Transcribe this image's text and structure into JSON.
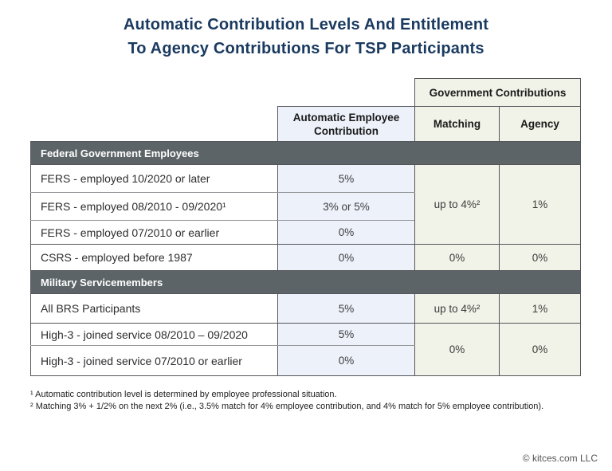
{
  "title": {
    "line1": "Automatic Contribution Levels And Entitlement",
    "line2": "To Agency Contributions For TSP Participants"
  },
  "table": {
    "government_header": "Government Contributions",
    "columns": {
      "employee": "Automatic Employee Contribution",
      "matching": "Matching",
      "agency": "Agency"
    },
    "federal": {
      "section_label": "Federal Government Employees",
      "rows": [
        {
          "label": "FERS - employed 10/2020 or later",
          "employee": "5%"
        },
        {
          "label": "FERS - employed 08/2010 - 09/2020¹",
          "employee": "3% or 5%"
        },
        {
          "label": "FERS - employed 07/2010 or earlier",
          "employee": "0%"
        },
        {
          "label": "CSRS - employed before 1987",
          "employee": "0%",
          "matching": "0%",
          "agency": "0%"
        }
      ],
      "merged": {
        "matching": "up to 4%²",
        "agency": "1%"
      }
    },
    "military": {
      "section_label": "Military Servicemembers",
      "rows": [
        {
          "label": "All BRS Participants",
          "employee": "5%",
          "matching": "up to 4%²",
          "agency": "1%"
        },
        {
          "label": "High-3 - joined service 08/2010 – 09/2020",
          "employee": "5%"
        },
        {
          "label": "High-3 - joined service 07/2010 or earlier",
          "employee": "0%"
        }
      ],
      "merged": {
        "matching": "0%",
        "agency": "0%"
      }
    }
  },
  "footnotes": [
    "¹ Automatic contribution level is determined by employee professional situation.",
    "² Matching 3% + 1/2% on the next 2% (i.e., 3.5% match for 4% employee contribution, and 4% match for 5% employee contribution)."
  ],
  "copyright": "© kitces.com LLC",
  "colors": {
    "title_navy": "#1a3a60",
    "section_band_gray": "#5d6467",
    "employee_column_bg": "#edf1fa",
    "government_columns_bg": "#f1f3e8",
    "border_gray": "#54565a"
  },
  "chart_data": {
    "type": "table",
    "title": "Automatic Contribution Levels And Entitlement To Agency Contributions For TSP Participants",
    "columns": [
      "",
      "Automatic Employee Contribution",
      "Matching",
      "Agency"
    ],
    "column_groups": [
      {
        "label": "Government Contributions",
        "columns": [
          "Matching",
          "Agency"
        ]
      }
    ],
    "sections": [
      {
        "label": "Federal Government Employees",
        "rows": [
          [
            "FERS - employed 10/2020 or later",
            "5%",
            "up to 4%²",
            "1%"
          ],
          [
            "FERS - employed 08/2010 - 09/2020¹",
            "3% or 5%",
            "up to 4%²",
            "1%"
          ],
          [
            "FERS - employed 07/2010 or earlier",
            "0%",
            "up to 4%²",
            "1%"
          ],
          [
            "CSRS - employed before 1987",
            "0%",
            "0%",
            "0%"
          ]
        ]
      },
      {
        "label": "Military Servicemembers",
        "rows": [
          [
            "All BRS Participants",
            "5%",
            "up to 4%²",
            "1%"
          ],
          [
            "High-3 - joined service 08/2010 – 09/2020",
            "5%",
            "0%",
            "0%"
          ],
          [
            "High-3 - joined service 07/2010 or earlier",
            "0%",
            "0%",
            "0%"
          ]
        ]
      }
    ],
    "footnotes": [
      "¹ Automatic contribution level is determined by employee professional situation.",
      "² Matching 3% + 1/2% on the next 2% (i.e., 3.5% match for 4% employee contribution, and 4% match for 5% employee contribution)."
    ]
  }
}
